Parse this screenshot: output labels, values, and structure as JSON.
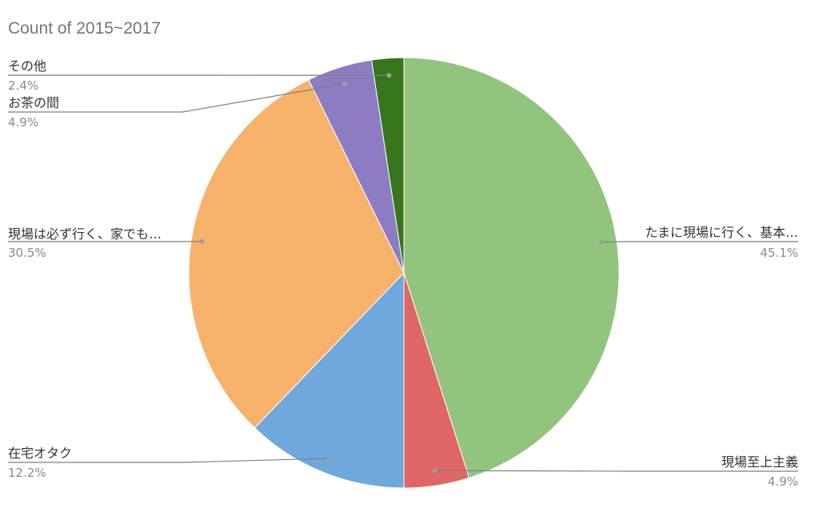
{
  "chart_data": {
    "type": "pie",
    "title": "Count of 2015~2017",
    "slices": [
      {
        "label": "たまに現場に行く、基本…",
        "percent_label": "45.1%",
        "value": 45.1,
        "color": "#93c47d"
      },
      {
        "label": "現場至上主義",
        "percent_label": "4.9%",
        "value": 4.9,
        "color": "#e06666"
      },
      {
        "label": "在宅オタク",
        "percent_label": "12.2%",
        "value": 12.2,
        "color": "#6fa8dc"
      },
      {
        "label": "現場は必ず行く、家でも…",
        "percent_label": "30.5%",
        "value": 30.5,
        "color": "#f6b26b"
      },
      {
        "label": "お茶の間",
        "percent_label": "4.9%",
        "value": 4.9,
        "color": "#8e7cc3"
      },
      {
        "label": "その他",
        "percent_label": "2.4%",
        "value": 2.4,
        "color": "#38761d"
      }
    ]
  }
}
